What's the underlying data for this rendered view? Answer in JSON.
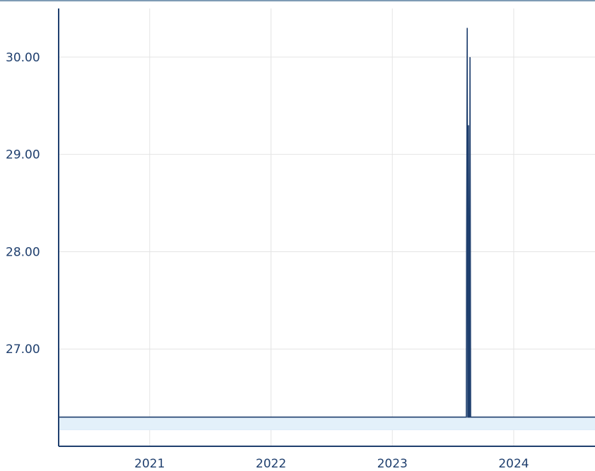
{
  "chart_data": {
    "type": "area",
    "title": "",
    "xlabel": "",
    "ylabel": "",
    "x_ticks": [
      {
        "label": "2021",
        "value": 2021.0
      },
      {
        "label": "2022",
        "value": 2022.0
      },
      {
        "label": "2023",
        "value": 2023.0
      },
      {
        "label": "2024",
        "value": 2024.0
      }
    ],
    "y_ticks": [
      {
        "label": "27.00",
        "value": 27.0
      },
      {
        "label": "28.00",
        "value": 28.0
      },
      {
        "label": "29.00",
        "value": 29.0
      },
      {
        "label": "30.00",
        "value": 30.0
      }
    ],
    "xlim": [
      2020.25,
      2024.67
    ],
    "ylim": [
      26.0,
      30.5
    ],
    "grid": true,
    "series": [
      {
        "x": [
          2020.25,
          2023.61,
          2023.612,
          2023.617,
          2023.622,
          2023.625,
          2023.627,
          2023.633,
          2023.636,
          2023.64,
          2023.645,
          2024.67
        ],
        "values": [
          26.3,
          26.3,
          28.0,
          30.3,
          26.3,
          26.3,
          29.3,
          26.3,
          26.3,
          30.0,
          26.3,
          26.3
        ]
      }
    ],
    "colors": {
      "line": "#1f3f6e",
      "fill": "#e3f0fa",
      "spike_fill": "#9fb4c9",
      "grid": "#e4e4e4",
      "axis": "#1f3f6e",
      "tick_label": "#1f3f6e"
    }
  }
}
